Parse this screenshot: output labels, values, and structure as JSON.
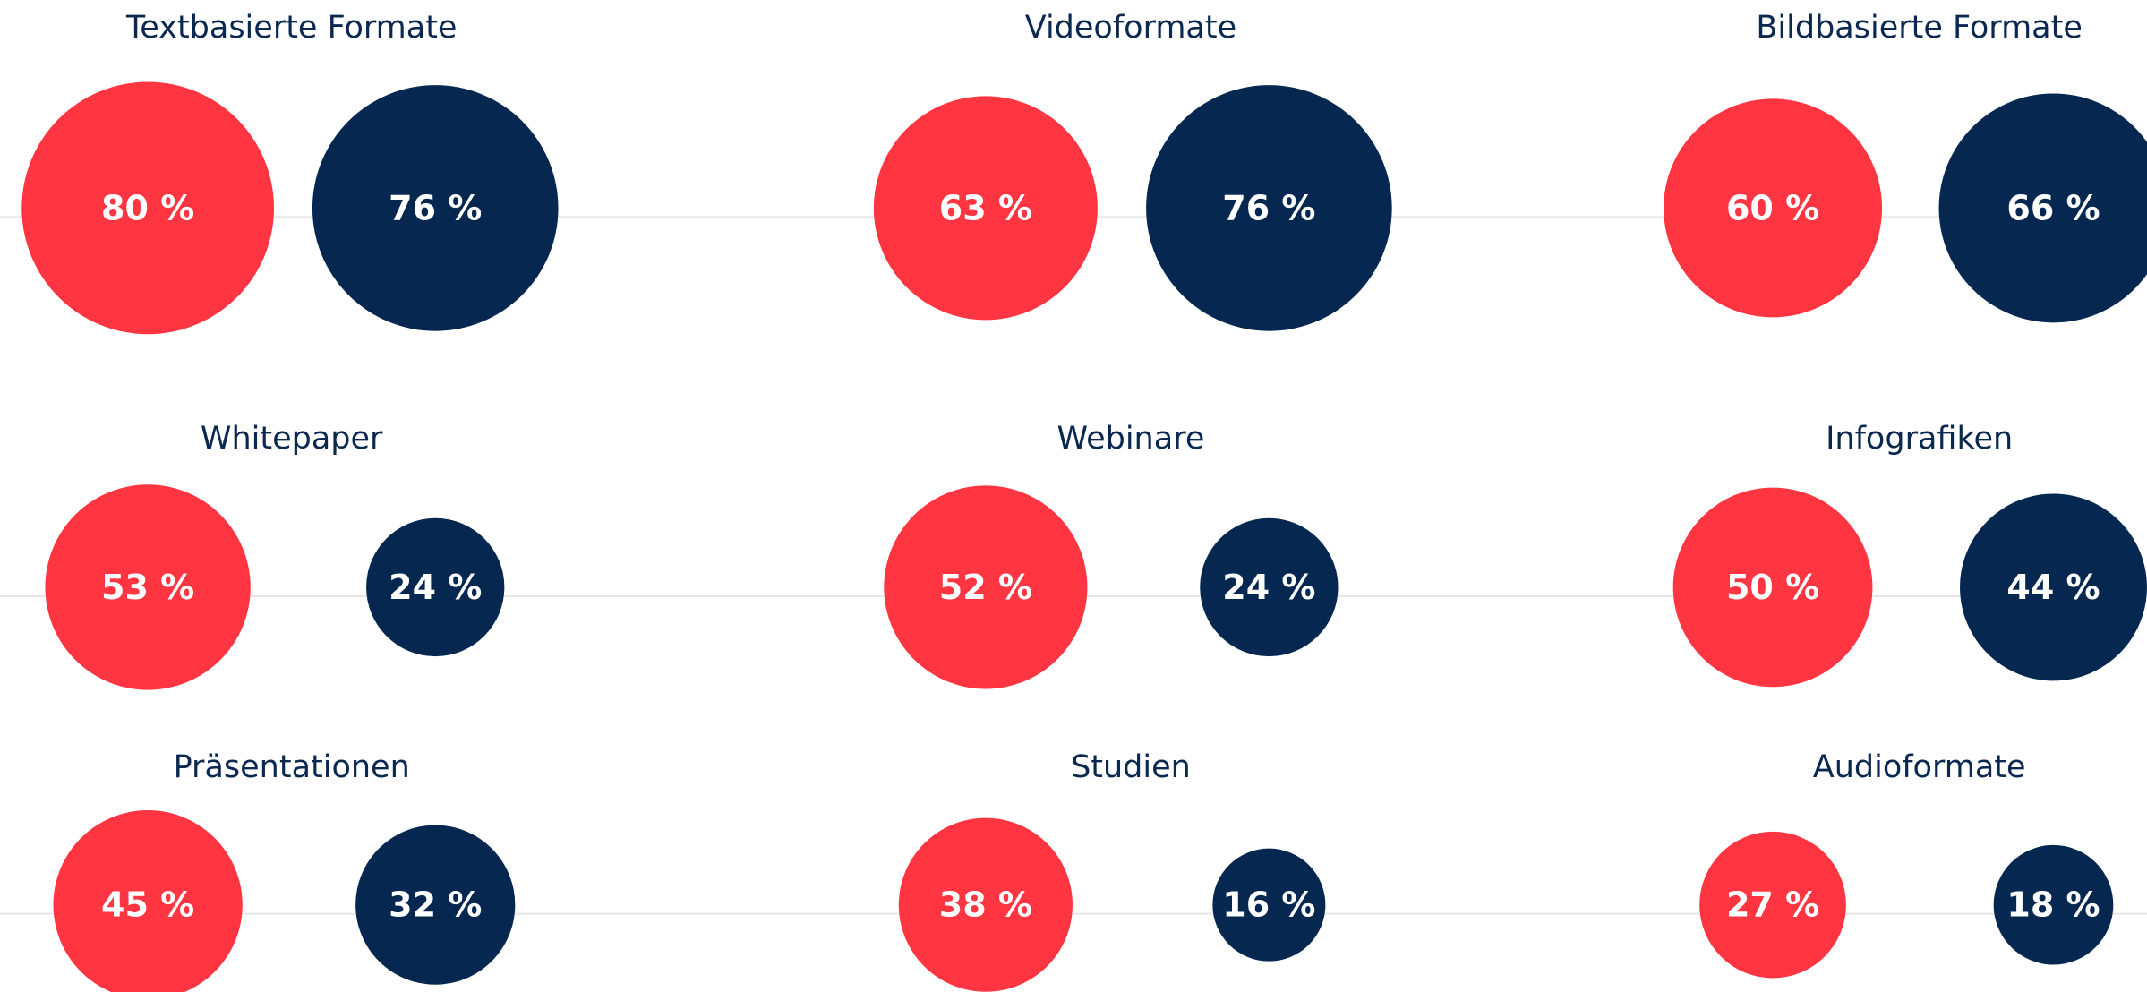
{
  "chart_data": [
    {
      "type": "bubble",
      "title": "Textbasierte Formate",
      "series": [
        {
          "color": "#ff3541",
          "values": [
            80
          ],
          "value_labels": [
            "80 %"
          ]
        },
        {
          "color": "#062850",
          "values": [
            76
          ],
          "value_labels": [
            "76 %"
          ]
        }
      ]
    },
    {
      "type": "bubble",
      "title": "Videoformate",
      "series": [
        {
          "color": "#ff3541",
          "values": [
            63
          ],
          "value_labels": [
            "63 %"
          ]
        },
        {
          "color": "#062850",
          "values": [
            76
          ],
          "value_labels": [
            "76 %"
          ]
        }
      ]
    },
    {
      "type": "bubble",
      "title": "Bildbasierte Formate",
      "series": [
        {
          "color": "#ff3541",
          "values": [
            60
          ],
          "value_labels": [
            "60 %"
          ]
        },
        {
          "color": "#062850",
          "values": [
            66
          ],
          "value_labels": [
            "66 %"
          ]
        }
      ]
    },
    {
      "type": "bubble",
      "title": "Whitepaper",
      "series": [
        {
          "color": "#ff3541",
          "values": [
            53
          ],
          "value_labels": [
            "53 %"
          ]
        },
        {
          "color": "#062850",
          "values": [
            24
          ],
          "value_labels": [
            "24 %"
          ]
        }
      ]
    },
    {
      "type": "bubble",
      "title": "Webinare",
      "series": [
        {
          "color": "#ff3541",
          "values": [
            52
          ],
          "value_labels": [
            "52 %"
          ]
        },
        {
          "color": "#062850",
          "values": [
            24
          ],
          "value_labels": [
            "24 %"
          ]
        }
      ]
    },
    {
      "type": "bubble",
      "title": "Infografiken",
      "series": [
        {
          "color": "#ff3541",
          "values": [
            50
          ],
          "value_labels": [
            "50 %"
          ]
        },
        {
          "color": "#062850",
          "values": [
            44
          ],
          "value_labels": [
            "44 %"
          ]
        }
      ]
    },
    {
      "type": "bubble",
      "title": "Präsentationen",
      "series": [
        {
          "color": "#ff3541",
          "values": [
            45
          ],
          "value_labels": [
            "45 %"
          ]
        },
        {
          "color": "#062850",
          "values": [
            32
          ],
          "value_labels": [
            "32 %"
          ]
        }
      ]
    },
    {
      "type": "bubble",
      "title": "Studien",
      "series": [
        {
          "color": "#ff3541",
          "values": [
            38
          ],
          "value_labels": [
            "38 %"
          ]
        },
        {
          "color": "#062850",
          "values": [
            16
          ],
          "value_labels": [
            "16 %"
          ]
        }
      ]
    },
    {
      "type": "bubble",
      "title": "Audioformate",
      "series": [
        {
          "color": "#ff3541",
          "values": [
            27
          ],
          "value_labels": [
            "27 %"
          ]
        },
        {
          "color": "#062850",
          "values": [
            18
          ],
          "value_labels": [
            "18 %"
          ]
        }
      ]
    }
  ]
}
